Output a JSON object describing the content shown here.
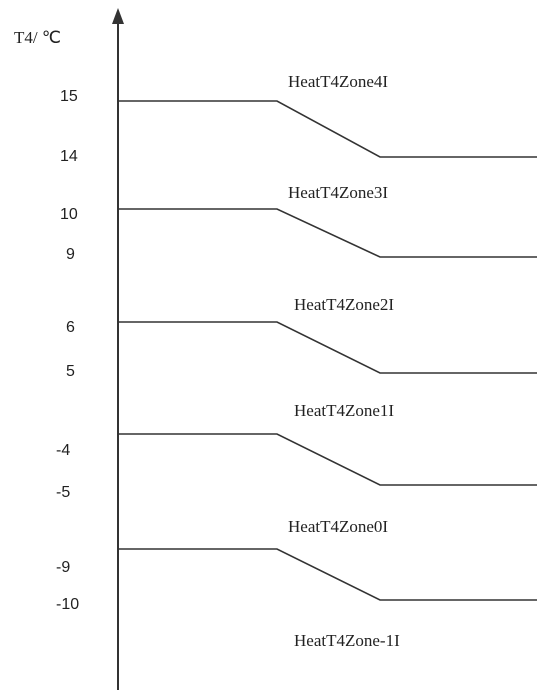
{
  "axis": {
    "title": "T4/ ℃"
  },
  "ticks": [
    {
      "label": "15"
    },
    {
      "label": "14"
    },
    {
      "label": "10"
    },
    {
      "label": "9"
    },
    {
      "label": "6"
    },
    {
      "label": "5"
    },
    {
      "label": "-4"
    },
    {
      "label": "-5"
    },
    {
      "label": "-9"
    },
    {
      "label": "-10"
    }
  ],
  "zones": [
    {
      "label": "HeatT4Zone4I"
    },
    {
      "label": "HeatT4Zone3I"
    },
    {
      "label": "HeatT4Zone2I"
    },
    {
      "label": "HeatT4Zone1I"
    },
    {
      "label": "HeatT4Zone0I"
    },
    {
      "label": "HeatT4Zone-1I"
    }
  ]
}
